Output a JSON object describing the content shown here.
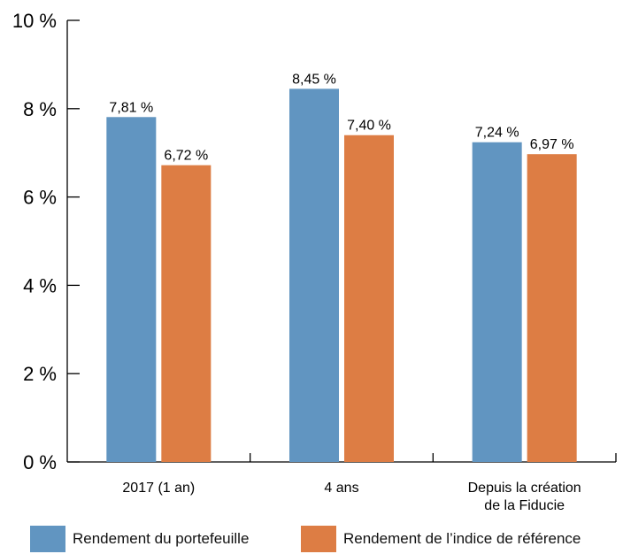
{
  "chart_data": {
    "type": "bar",
    "categories": [
      "2017 (1 an)",
      "4 ans",
      "Depuis la création de la Fiducie"
    ],
    "category_lines": [
      [
        "2017 (1 an)"
      ],
      [
        "4 ans"
      ],
      [
        "Depuis la création",
        "de la Fiducie"
      ]
    ],
    "series": [
      {
        "name": "Rendement du portefeuille",
        "values": [
          7.81,
          8.45,
          7.24
        ],
        "labels": [
          "7,81 %",
          "8,45 %",
          "7,24 %"
        ],
        "color": "#6195C1"
      },
      {
        "name": "Rendement de l’indice de référence",
        "values": [
          6.72,
          7.4,
          6.97
        ],
        "labels": [
          "6,72 %",
          "7,40 %",
          "6,97 %"
        ],
        "color": "#DD7D44"
      }
    ],
    "ylim": [
      0,
      10
    ],
    "yticks": [
      0,
      2,
      4,
      6,
      8,
      10
    ],
    "ytick_labels": [
      "0 %",
      "2 %",
      "4 %",
      "6 %",
      "8 %",
      "10 %"
    ],
    "title": "",
    "xlabel": "",
    "ylabel": "",
    "grid": false,
    "legend_position": "bottom"
  }
}
